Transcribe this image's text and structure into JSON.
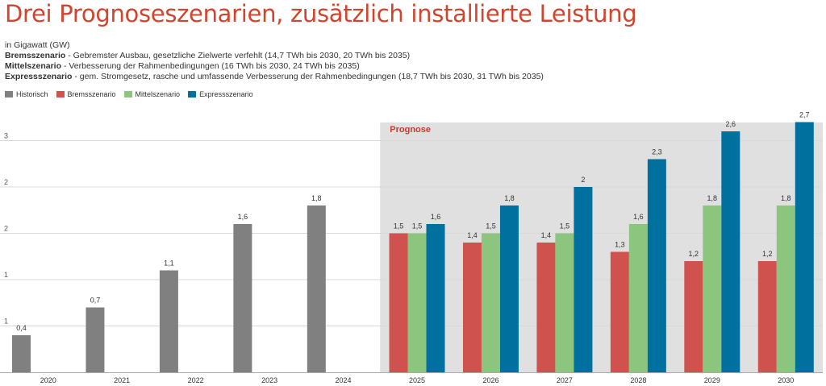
{
  "header": {
    "title": "Drei Prognoseszenarien, zusätzlich installierte Leistung",
    "unit": "in Gigawatt (GW)",
    "lines": [
      {
        "bold": "Bremsszenario",
        "text": " - Gebremster Ausbau, gesetzliche Zielwerte verfehlt (14,7 TWh bis 2030, 20 TWh bis 2035)"
      },
      {
        "bold": "Mittelszenario",
        "text": " - Verbesserung der Rahmenbedingungen (16 TWh bis 2030, 24 TWh bis 2035)"
      },
      {
        "bold": "Expressszenario",
        "text": " - gem. Stromgesetz, rasche und umfassende Verbesserung der Rahmenbedingungen (18,7 TWh bis 2030, 31 TWh bis 2035)"
      }
    ]
  },
  "colors": {
    "Historisch": "#808080",
    "Bremsszenario": "#d0524e",
    "Mittelszenario": "#8cc57e",
    "Expressszenario": "#00709e",
    "forecast_bg": "#e0e0e0",
    "forecast_label": "#c73a2e"
  },
  "chart_data": {
    "type": "bar",
    "categories": [
      "2020",
      "2021",
      "2022",
      "2023",
      "2024",
      "2025",
      "2026",
      "2027",
      "2028",
      "2029",
      "2030"
    ],
    "series": [
      {
        "name": "Historisch",
        "values": [
          0.4,
          0.7,
          1.1,
          1.6,
          1.8,
          null,
          null,
          null,
          null,
          null,
          null
        ]
      },
      {
        "name": "Bremsszenario",
        "values": [
          null,
          null,
          null,
          null,
          null,
          1.5,
          1.4,
          1.4,
          1.3,
          1.2,
          1.2
        ]
      },
      {
        "name": "Mittelszenario",
        "values": [
          null,
          null,
          null,
          null,
          null,
          1.5,
          1.5,
          1.5,
          1.6,
          1.8,
          1.8
        ]
      },
      {
        "name": "Expressszenario",
        "values": [
          null,
          null,
          null,
          null,
          null,
          1.6,
          1.8,
          2,
          2.3,
          2.6,
          2.7
        ]
      }
    ],
    "value_labels": {
      "Historisch": [
        "0,4",
        "0,7",
        "1,1",
        "1,6",
        "1,8"
      ],
      "Bremsszenario": [
        "1,5",
        "1,4",
        "1,4",
        "1,3",
        "1,2",
        "1,2"
      ],
      "Mittelszenario": [
        "1,5",
        "1,5",
        "1,5",
        "1,6",
        "1,8",
        "1,8"
      ],
      "Expressszenario": [
        "1,6",
        "1,8",
        "2",
        "2,3",
        "2,6",
        "2,7"
      ]
    },
    "y_ticks": [
      {
        "value": 0.5,
        "label": "1"
      },
      {
        "value": 1.0,
        "label": "1"
      },
      {
        "value": 1.5,
        "label": "2"
      },
      {
        "value": 2.0,
        "label": "2"
      },
      {
        "value": 2.5,
        "label": "3"
      }
    ],
    "ylim": [
      0,
      2.7
    ],
    "forecast_label": "Prognose",
    "forecast_start": "2025",
    "grid": true,
    "legend": "top-left"
  }
}
